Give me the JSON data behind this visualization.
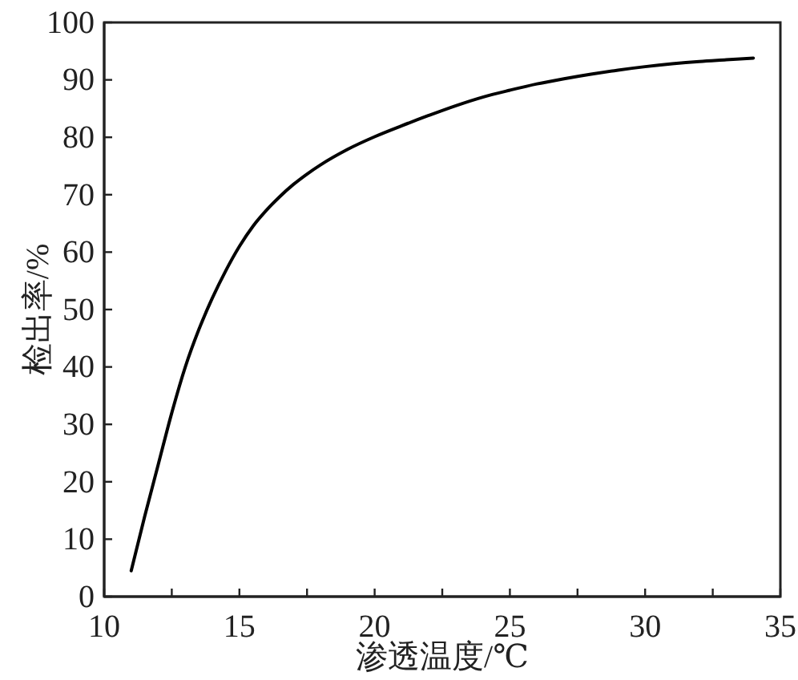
{
  "chart_data": {
    "type": "line",
    "xlabel": "渗透温度/℃",
    "ylabel": "检出率/%",
    "x": [
      11,
      11.5,
      12,
      12.5,
      13,
      13.5,
      14,
      14.5,
      15,
      15.5,
      16,
      16.5,
      17,
      17.5,
      18,
      19,
      20,
      21,
      22,
      23,
      24,
      25,
      26,
      27,
      28,
      29,
      30,
      31,
      32,
      33,
      34
    ],
    "series": [
      {
        "color": "#000000",
        "values": [
          4.5,
          14,
          23,
          32,
          40,
          46.5,
          52,
          56.8,
          61,
          64.5,
          67.3,
          69.7,
          71.8,
          73.6,
          75.2,
          77.9,
          80.1,
          82,
          83.8,
          85.5,
          87,
          88.2,
          89.3,
          90.2,
          91,
          91.7,
          92.3,
          92.8,
          93.2,
          93.5,
          93.8
        ]
      }
    ],
    "xlim": [
      10,
      35
    ],
    "ylim": [
      0,
      100
    ],
    "xticks": [
      10,
      {
        "value": 12.5,
        "label": null
      },
      15,
      {
        "value": 17.5,
        "label": null
      },
      20,
      {
        "value": 22.5,
        "label": null
      },
      25,
      {
        "value": 27.5,
        "label": null
      },
      30,
      {
        "value": 32.5,
        "label": null
      },
      35
    ],
    "yticks": [
      0,
      10,
      20,
      30,
      40,
      50,
      60,
      70,
      80,
      90,
      100
    ],
    "marker": "none",
    "line_style": "solid"
  }
}
